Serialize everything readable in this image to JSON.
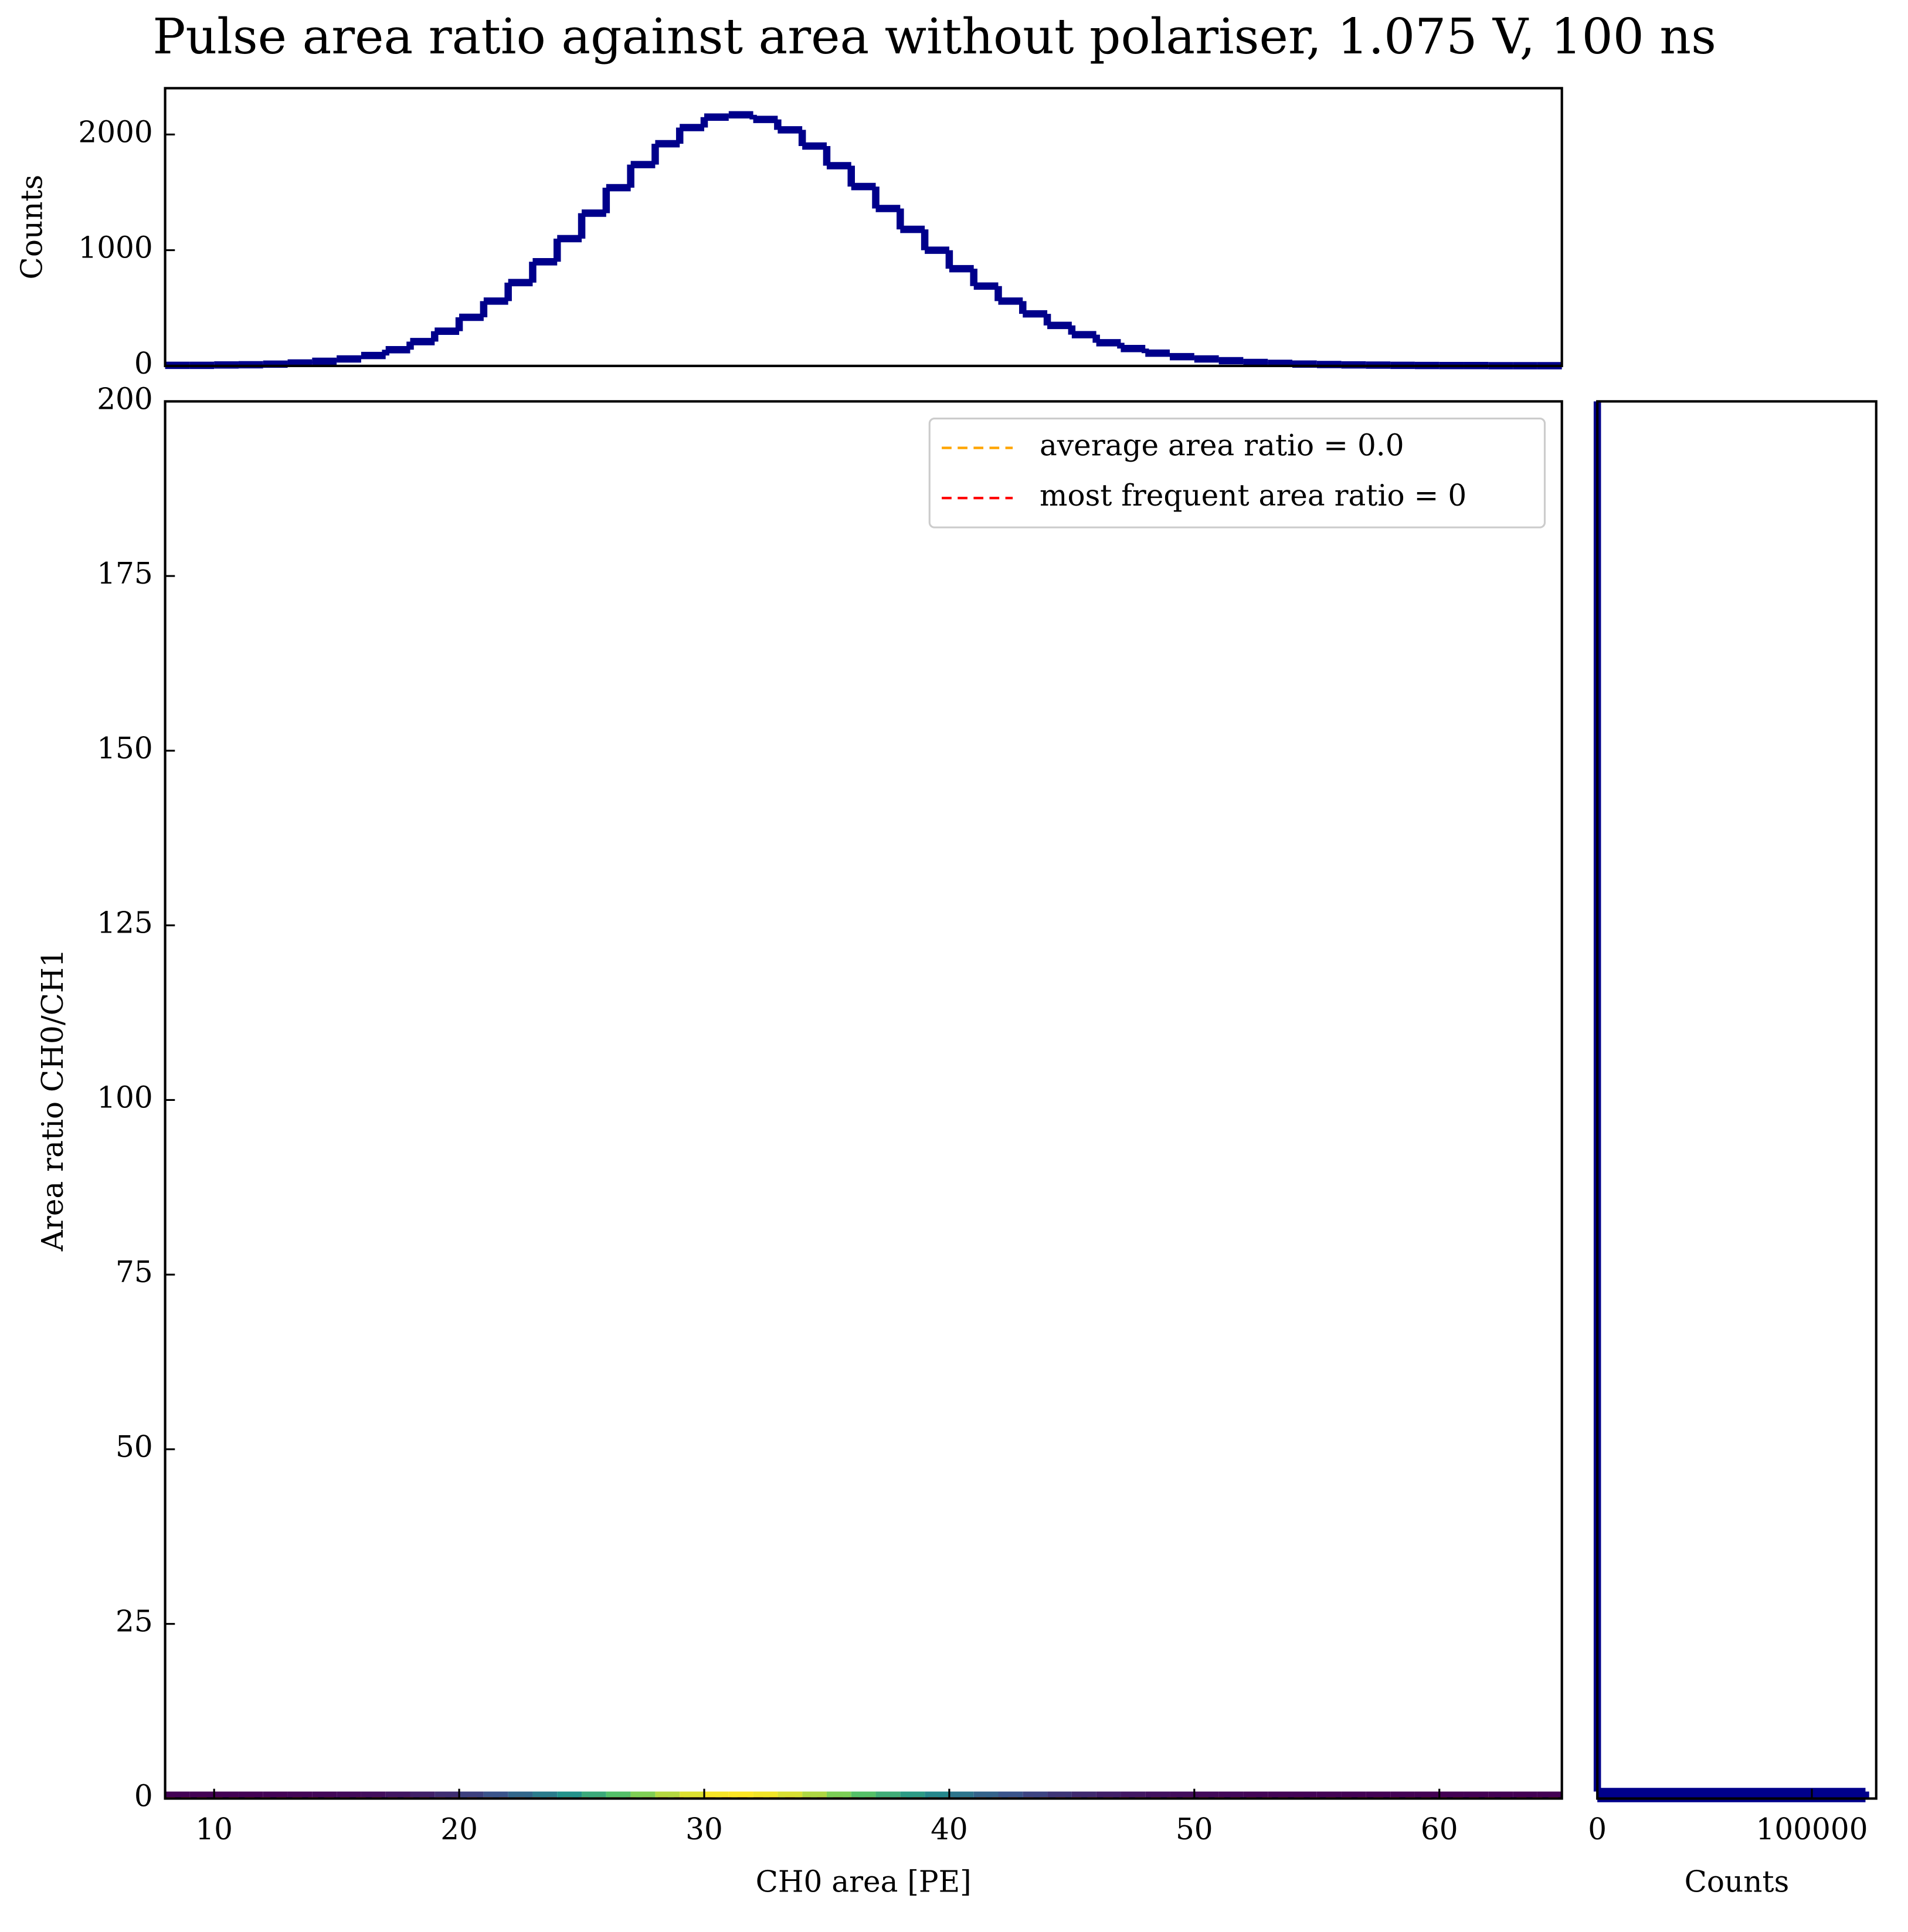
{
  "chart_data": [
    {
      "type": "histogram",
      "title": "Pulse area ratio against area without polariser, 1.075 V, 100 ns",
      "ylabel": "Counts",
      "color": "#00008b",
      "bins": [
        8,
        9,
        10,
        11,
        12,
        13,
        14,
        15,
        16,
        17,
        18,
        19,
        20,
        21,
        22,
        23,
        24,
        25,
        26,
        27,
        28,
        29,
        30,
        31,
        32,
        33,
        34,
        35,
        36,
        37,
        38,
        39,
        40,
        41,
        42,
        43,
        44,
        45,
        46,
        47,
        48,
        49,
        50,
        51,
        52,
        53,
        54,
        55,
        56,
        57,
        58,
        59,
        60,
        61,
        62,
        63,
        64,
        65
      ],
      "counts": [
        5,
        5,
        8,
        10,
        15,
        25,
        40,
        60,
        90,
        140,
        210,
        300,
        420,
        560,
        720,
        900,
        1100,
        1320,
        1540,
        1740,
        1920,
        2060,
        2150,
        2170,
        2130,
        2040,
        1900,
        1730,
        1550,
        1360,
        1180,
        1000,
        840,
        690,
        560,
        450,
        350,
        270,
        200,
        150,
        110,
        80,
        60,
        45,
        30,
        22,
        16,
        12,
        9,
        7,
        5,
        4,
        3,
        3,
        2,
        2,
        2
      ],
      "xlim": [
        8,
        65
      ],
      "ylim": [
        0,
        2400
      ],
      "yticks": [
        0,
        1000,
        2000
      ]
    },
    {
      "type": "hist2d",
      "xlabel": "CH0 area [PE]",
      "ylabel": "Area ratio CH0/CH1",
      "xlim": [
        8,
        65
      ],
      "xticks": [
        10,
        20,
        30,
        40,
        50,
        60
      ],
      "ylim": [
        0,
        200
      ],
      "yticks": [
        0,
        25,
        50,
        75,
        100,
        125,
        150,
        175,
        200
      ],
      "lines": [
        {
          "name": "average area ratio = 0.0",
          "value": 0,
          "color": "#ffa500"
        },
        {
          "name": "most frequent area ratio = 0",
          "value": 0,
          "color": "#ff0000"
        }
      ],
      "legend": "upper right"
    },
    {
      "type": "histogram",
      "orientation": "horizontal",
      "xlabel": "Counts",
      "color": "#00008b",
      "bins": [
        0,
        1,
        200
      ],
      "counts": [
        125000,
        0
      ],
      "xlim": [
        0,
        130000
      ],
      "xticks": [
        0,
        100000
      ],
      "ylim": [
        0,
        200
      ]
    }
  ]
}
